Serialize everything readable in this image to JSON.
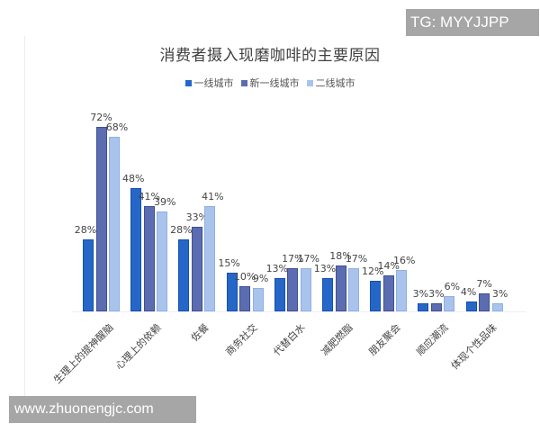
{
  "watermarks": {
    "top_right": "TG: MYYJJPP",
    "bottom_left": "www.zhuonengjc.com"
  },
  "colors": {
    "series_1": "#2567c9",
    "series_2": "#5b6db0",
    "series_3": "#a9c3ec"
  },
  "chart_data": {
    "type": "bar",
    "title": "消费者摄入现磨咖啡的主要原因",
    "xlabel": "",
    "ylabel": "",
    "ylim": [
      0,
      80
    ],
    "grid": false,
    "legend_position": "top",
    "categories": [
      "生理上的提神醒脑",
      "心理上的依赖",
      "佐餐",
      "商务社交",
      "代替白水",
      "减肥燃脂",
      "朋友聚会",
      "顺应潮流",
      "体现个性品味"
    ],
    "series": [
      {
        "name": "一线城市",
        "values": [
          28,
          48,
          28,
          15,
          13,
          13,
          12,
          3,
          4
        ],
        "labels": [
          "28%",
          "48%",
          "28%",
          "15%",
          "13%",
          "13%",
          "12%",
          "3%",
          "4%"
        ]
      },
      {
        "name": "新一线城市",
        "values": [
          72,
          41,
          33,
          10,
          17,
          18,
          14,
          3,
          7
        ],
        "labels": [
          "72%",
          "41%",
          "33%",
          "10%",
          "17%",
          "18%",
          "14%",
          "3%",
          "7%"
        ]
      },
      {
        "name": "二线城市",
        "values": [
          68,
          39,
          41,
          9,
          17,
          17,
          16,
          6,
          3
        ],
        "labels": [
          "68%",
          "39%",
          "41%",
          "9%",
          "17%",
          "17%",
          "16%",
          "6%",
          "3%"
        ]
      }
    ]
  }
}
